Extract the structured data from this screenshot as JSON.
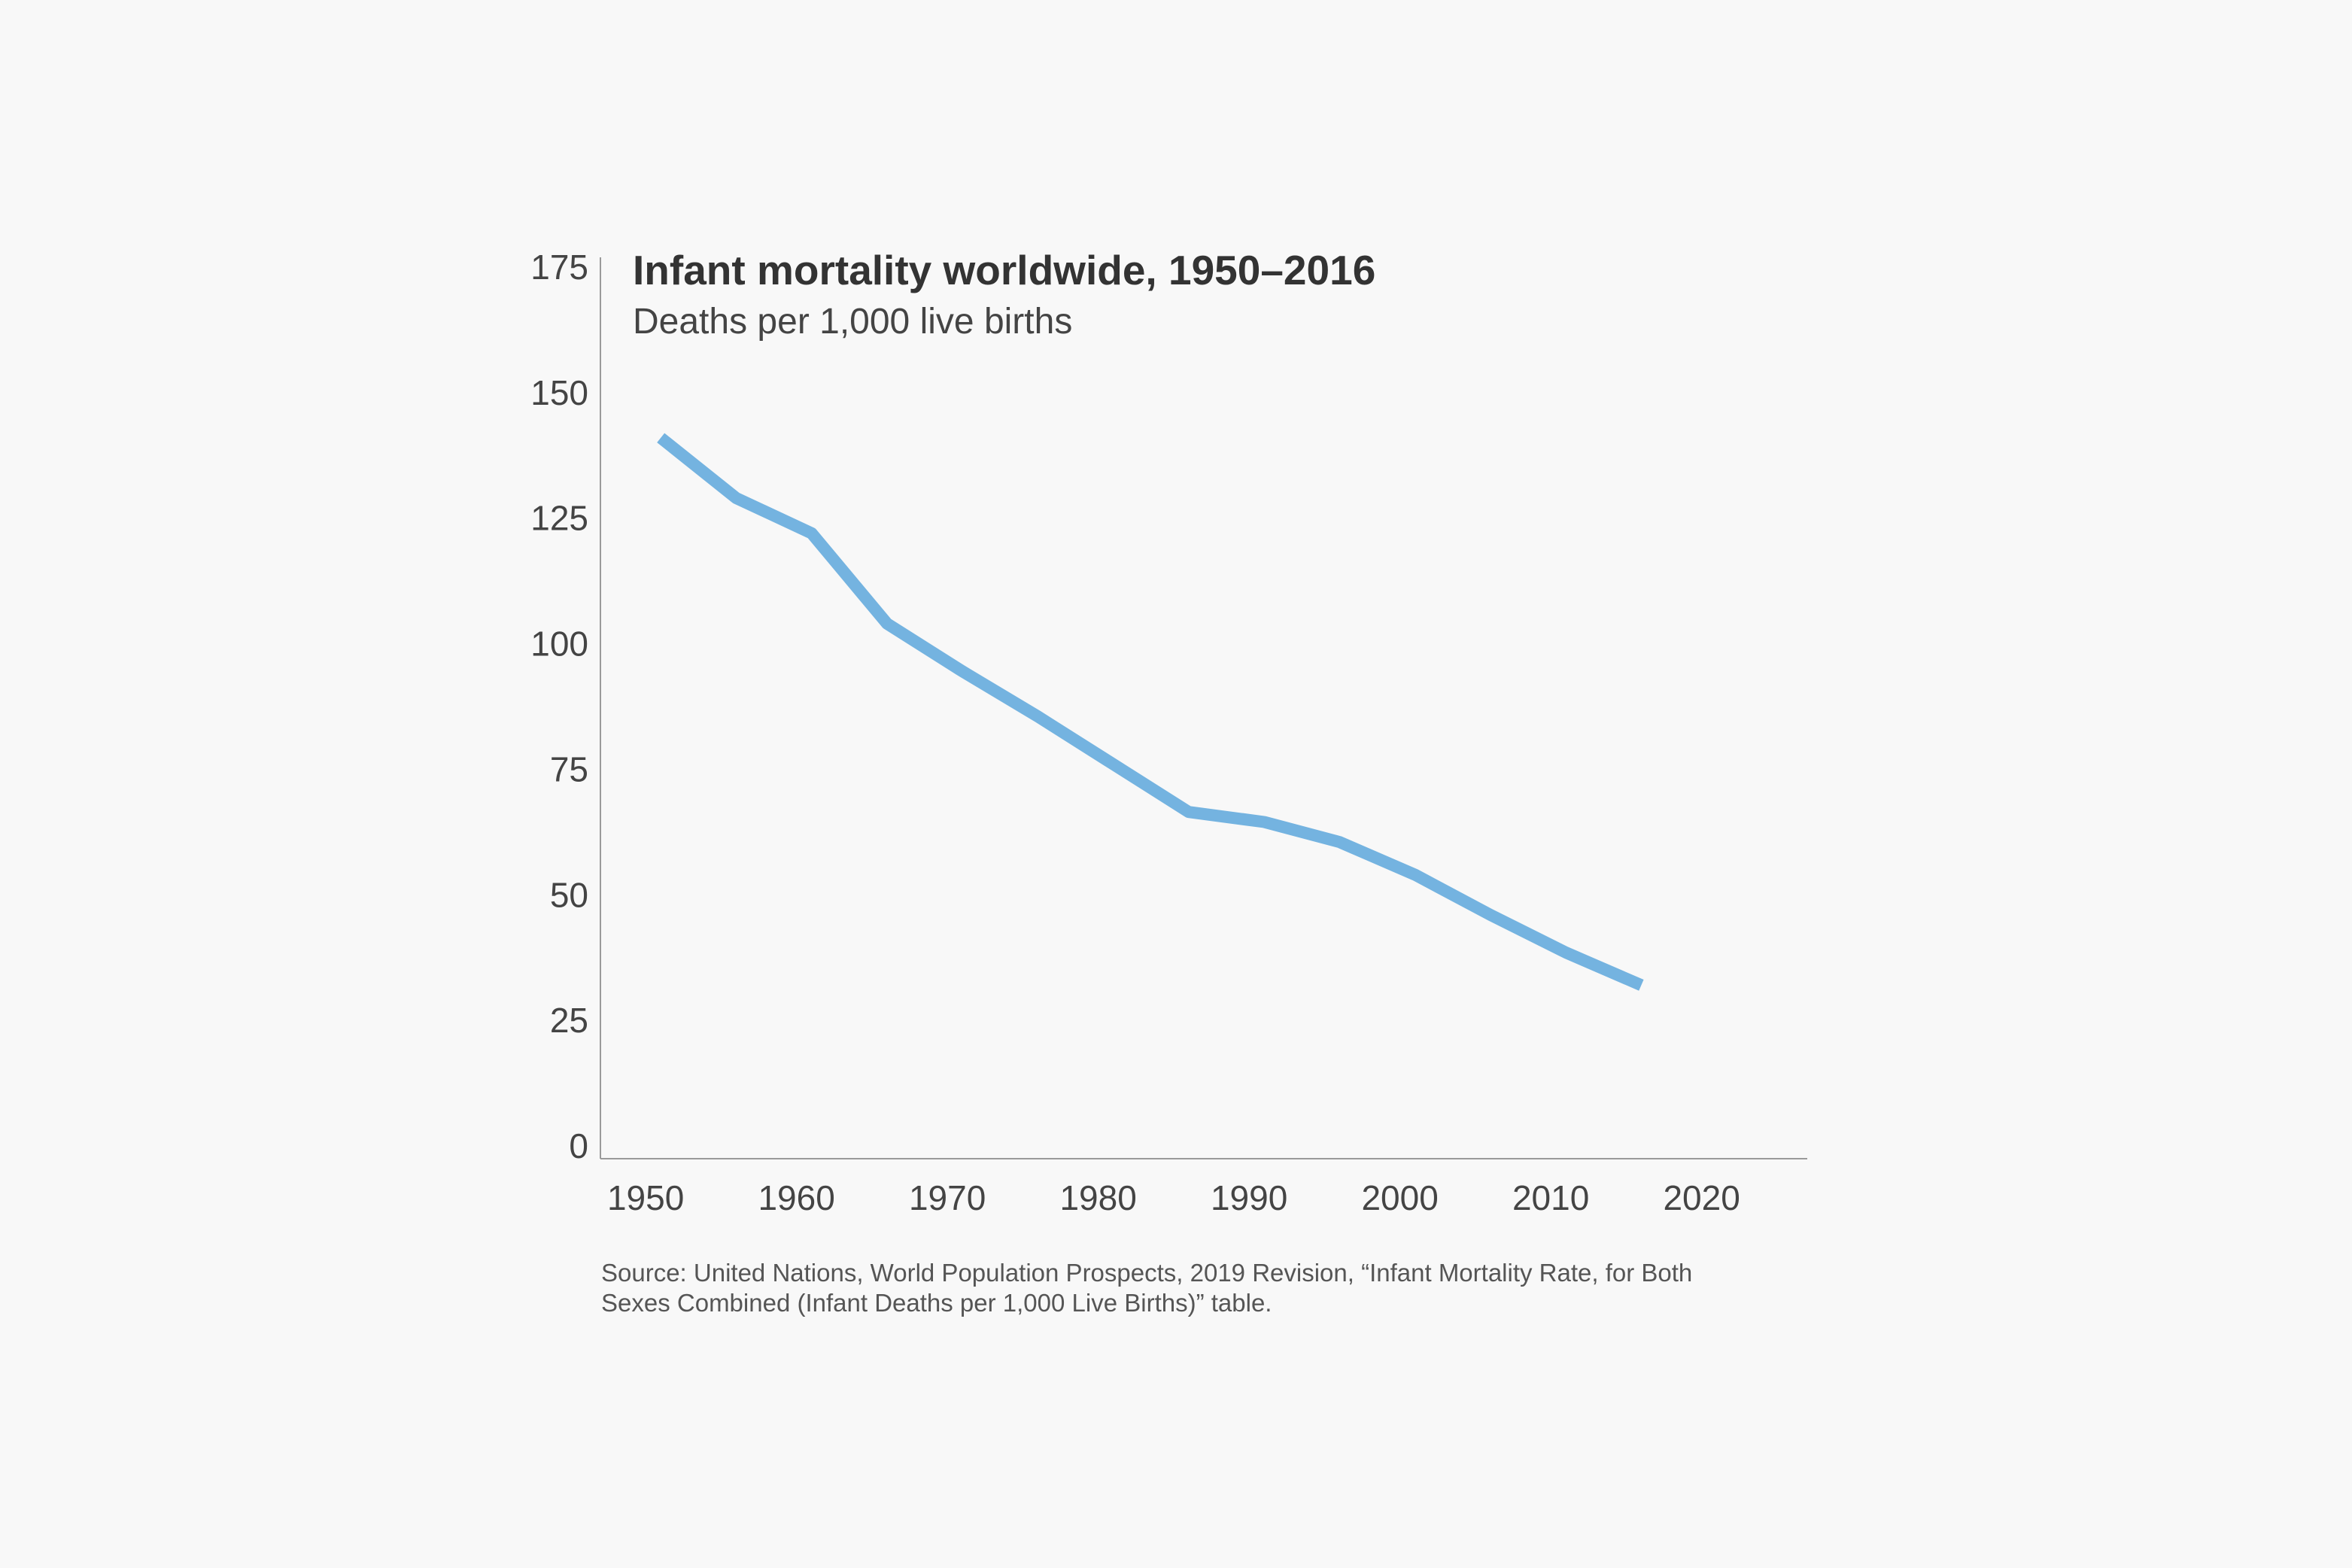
{
  "chart_data": {
    "type": "line",
    "title": "Infant mortality worldwide, 1950–2016",
    "subtitle": "Deaths per 1,000 live births",
    "xlabel": "",
    "ylabel": "",
    "xlim": [
      1947,
      2027
    ],
    "ylim": [
      0,
      175
    ],
    "x_ticks": [
      1950,
      1960,
      1970,
      1980,
      1990,
      2000,
      2010,
      2020
    ],
    "y_ticks": [
      0,
      25,
      50,
      75,
      100,
      125,
      150,
      175
    ],
    "grid": false,
    "series": [
      {
        "color": "#74b3e0",
        "x": [
          1951,
          1956,
          1961,
          1966,
          1971,
          1976,
          1981,
          1986,
          1991,
          1996,
          2001,
          2006,
          2011,
          2016
        ],
        "y": [
          141,
          129,
          122,
          104,
          94.5,
          85.5,
          76,
          66.5,
          64.5,
          60.5,
          54,
          46,
          38.5,
          32
        ]
      }
    ],
    "source": [
      "Source: United Nations, World Population Prospects, 2019 Revision, “Infant Mortality Rate, for Both",
      "Sexes Combined (Infant Deaths per 1,000 Live Births)” table."
    ]
  }
}
